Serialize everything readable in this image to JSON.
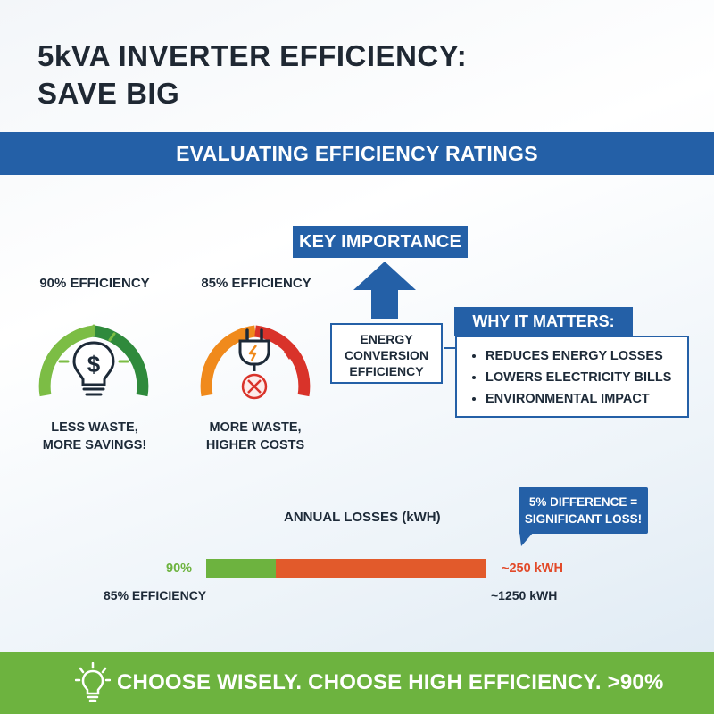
{
  "header": {
    "title_line1": "5kVA INVERTER EFFICIENCY:",
    "title_line2": "SAVE BIG"
  },
  "band": {
    "text": "EVALUATING EFFICIENCY RATINGS"
  },
  "gauges": [
    {
      "label": "90% EFFICIENCY",
      "caption_line1": "LESS WASTE,",
      "caption_line2": "MORE SAVINGS!",
      "icon": "lightbulb-dollar-icon",
      "colors": [
        "#7cbd45",
        "#2f8a3c"
      ]
    },
    {
      "label": "85% EFFICIENCY",
      "caption_line1": "MORE WASTE,",
      "caption_line2": "HIGHER COSTS",
      "icon": "power-plug-icon",
      "colors": [
        "#f08a1c",
        "#d9332a"
      ]
    }
  ],
  "key": {
    "title": "KEY IMPORTANCE",
    "box_line1": "ENERGY",
    "box_line2": "CONVERSION",
    "box_line3": "EFFICIENCY"
  },
  "why": {
    "title": "WHY IT MATTERS:",
    "items": [
      "REDUCES ENERGY LOSSES",
      "LOWERS ELECTRICITY BILLS",
      "ENVIRONMENTAL IMPACT"
    ]
  },
  "losses": {
    "title": "ANNUAL LOSSES (kWH)",
    "callout_line1": "5% DIFFERENCE =",
    "callout_line2": "SIGNIFICANT LOSS!",
    "label_90": "90%",
    "value_90": "~250 kWH",
    "label_85": "85% EFFICIENCY",
    "value_85": "~1250 kWH",
    "bar_colors": {
      "green": "#6db33f",
      "red": "#e25a2b"
    }
  },
  "footer": {
    "text": "CHOOSE WISELY. CHOOSE HIGH EFFICIENCY. >90%",
    "icon": "lightbulb-icon"
  },
  "colors": {
    "brand_blue": "#2460a7",
    "green": "#6db33f",
    "red": "#e25a2b"
  }
}
